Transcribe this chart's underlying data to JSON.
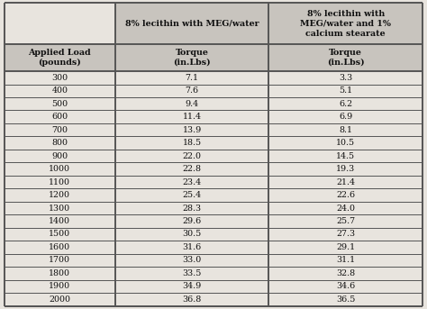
{
  "col1_header": "8% lecithin with MEG/water",
  "col2_header": "8% lecithin with\nMEG/water and 1%\ncalcium stearate",
  "sub_col1": "Applied Load\n(pounds)",
  "sub_col2": "Torque\n(in.Lbs)",
  "sub_col3": "Torque\n(in.Lbs)",
  "loads": [
    300,
    400,
    500,
    600,
    700,
    800,
    900,
    1000,
    1100,
    1200,
    1300,
    1400,
    1500,
    1600,
    1700,
    1800,
    1900,
    2000
  ],
  "torque1": [
    "7.1",
    "7.6",
    "9.4",
    "11.4",
    "13.9",
    "18.5",
    "22.0",
    "22.8",
    "23.4",
    "25.4",
    "28.3",
    "29.6",
    "30.5",
    "31.6",
    "33.0",
    "33.5",
    "34.9",
    "36.8"
  ],
  "torque2": [
    "3.3",
    "5.1",
    "6.2",
    "6.9",
    "8.1",
    "10.5",
    "14.5",
    "19.3",
    "21.4",
    "22.6",
    "24.0",
    "25.7",
    "27.3",
    "29.1",
    "31.1",
    "32.8",
    "34.6",
    "36.5"
  ],
  "bg_color": "#e8e4de",
  "header_bg": "#c8c4be",
  "line_color": "#555555",
  "text_color": "#111111",
  "figsize": [
    4.74,
    3.43
  ],
  "dpi": 100
}
